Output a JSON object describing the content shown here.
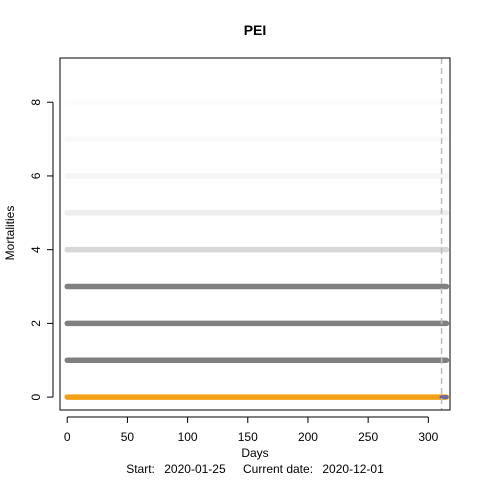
{
  "chart_data": {
    "type": "scatter",
    "title": "PEI",
    "xlabel": "Days",
    "ylabel": "Mortalities",
    "xlim": [
      -6,
      318
    ],
    "ylim": [
      -0.35,
      9.2
    ],
    "x_ticks": [
      0,
      50,
      100,
      150,
      200,
      250,
      300
    ],
    "y_ticks": [
      0,
      2,
      4,
      6,
      8
    ],
    "current_day": 311,
    "day_range": [
      0,
      315
    ],
    "grid": false,
    "legend": "none",
    "footer": {
      "start_label": "Start:",
      "start_date": "2020-01-25",
      "current_label": "Current date:",
      "current_date": "2020-12-01"
    },
    "series": [
      {
        "value": 0,
        "color": "#f2a014",
        "opacity": 1.0
      },
      {
        "value": 1,
        "color": "#808080",
        "opacity": 1.0
      },
      {
        "value": 2,
        "color": "#808080",
        "opacity": 1.0
      },
      {
        "value": 3,
        "color": "#808080",
        "opacity": 1.0
      },
      {
        "value": 4,
        "color": "#a8a8a8",
        "opacity": 0.45
      },
      {
        "value": 5,
        "color": "#c8c8c8",
        "opacity": 0.3
      },
      {
        "value": 6,
        "color": "#d8d8d8",
        "opacity": 0.22
      },
      {
        "value": 7,
        "color": "#e4e4e4",
        "opacity": 0.15
      },
      {
        "value": 8,
        "color": "#ececec",
        "opacity": 0.1
      }
    ],
    "tail_color": "#6a6aaa"
  }
}
